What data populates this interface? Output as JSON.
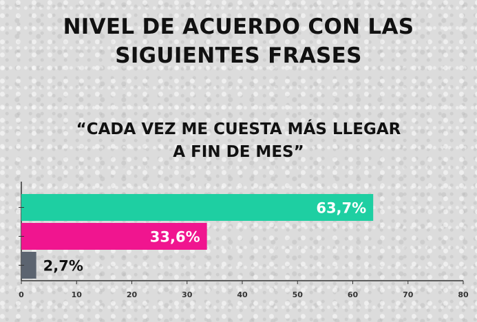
{
  "title_lines": [
    "NIVEL DE ACUERDO CON LAS",
    "SIGUIENTES FRASES"
  ],
  "subtitle_lines": [
    "“CADA VEZ ME CUESTA MÁS LLEGAR",
    "A FIN DE MES”"
  ],
  "chart_data": {
    "type": "bar",
    "orientation": "horizontal",
    "title": "NIVEL DE ACUERDO CON LAS SIGUIENTES FRASES",
    "subtitle": "“CADA VEZ ME CUESTA MÁS LLEGAR A FIN DE MES”",
    "xlim": [
      0,
      80
    ],
    "xticks": [
      0,
      10,
      20,
      30,
      40,
      50,
      60,
      70,
      80
    ],
    "xtick_labels": [
      "0",
      "10",
      "20",
      "30",
      "40",
      "50",
      "60",
      "70",
      "80"
    ],
    "values": [
      63.7,
      33.6,
      2.7
    ],
    "value_labels": [
      "63,7%",
      "33,6%",
      "2,7%"
    ],
    "colors": [
      "#1ecfa2",
      "#f0158f",
      "#5c6470"
    ],
    "label_colors": [
      "#ffffff",
      "#ffffff",
      "#111111"
    ],
    "grid": false
  }
}
